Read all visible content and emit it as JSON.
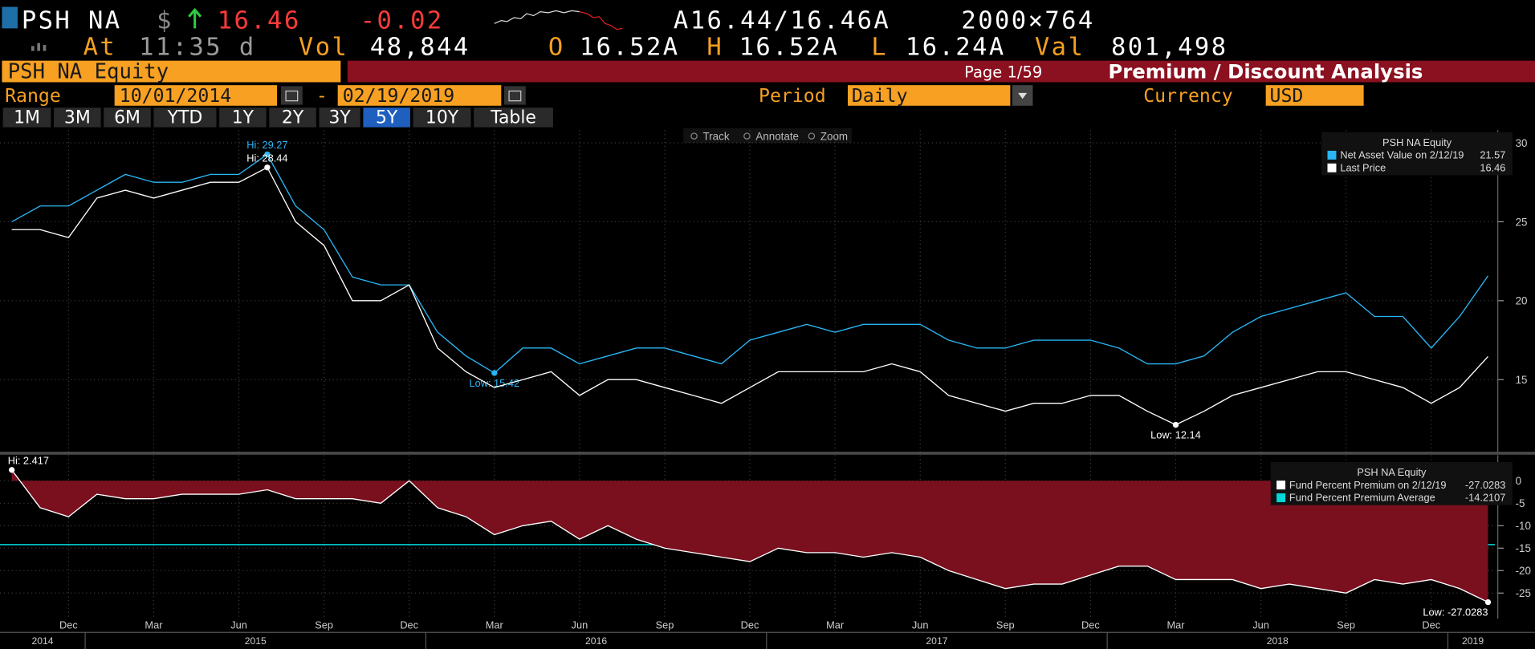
{
  "header": {
    "ticker": "PSH NA",
    "currency": "$",
    "last": "16.46",
    "change": "-0.02",
    "bid_ask": "A16.44/16.46A",
    "size": "2000×764",
    "at_label": "At",
    "time": "11:35 d",
    "vol_label": "Vol",
    "vol": "48,844",
    "open_label": "O",
    "open": "16.52A",
    "high_label": "H",
    "high": "16.52A",
    "low_label": "L",
    "low": "16.24A",
    "val_label": "Val",
    "val": "801,498"
  },
  "title_bar": {
    "security": "PSH NA Equity",
    "page": "Page 1/59",
    "function": "Premium / Discount Analysis"
  },
  "controls": {
    "range_label": "Range",
    "start": "10/01/2014",
    "dash": "-",
    "end": "02/19/2019",
    "period_label": "Period",
    "period": "Daily",
    "currency_label": "Currency",
    "currency": "USD",
    "buttons": [
      "1M",
      "3M",
      "6M",
      "YTD",
      "1Y",
      "2Y",
      "3Y",
      "5Y",
      "10Y",
      "Table"
    ],
    "selected": "5Y"
  },
  "toolbar": [
    "Track",
    "Annotate",
    "Zoom"
  ],
  "chart_data": [
    {
      "type": "line",
      "x": [
        "2014-10",
        "2014-11",
        "2014-12",
        "2015-01",
        "2015-02",
        "2015-03",
        "2015-04",
        "2015-05",
        "2015-06",
        "2015-07",
        "2015-08",
        "2015-09",
        "2015-10",
        "2015-11",
        "2015-12",
        "2016-01",
        "2016-02",
        "2016-03",
        "2016-04",
        "2016-05",
        "2016-06",
        "2016-07",
        "2016-08",
        "2016-09",
        "2016-10",
        "2016-11",
        "2016-12",
        "2017-01",
        "2017-02",
        "2017-03",
        "2017-04",
        "2017-05",
        "2017-06",
        "2017-07",
        "2017-08",
        "2017-09",
        "2017-10",
        "2017-11",
        "2017-12",
        "2018-01",
        "2018-02",
        "2018-03",
        "2018-04",
        "2018-05",
        "2018-06",
        "2018-07",
        "2018-08",
        "2018-09",
        "2018-10",
        "2018-11",
        "2018-12",
        "2019-01",
        "2019-02"
      ],
      "ylim": [
        10.4,
        30.8
      ],
      "yticks": [
        15,
        20,
        25,
        30
      ],
      "grid": true,
      "legend": {
        "title": "PSH NA Equity",
        "position": "upper right"
      },
      "series": [
        {
          "name": "Net Asset Value on 2/12/19",
          "color": "#29b6f6",
          "values": [
            25,
            26,
            26,
            27,
            28,
            27.5,
            27.5,
            28,
            28,
            29.27,
            26,
            24.5,
            21.5,
            21,
            21,
            18,
            16.5,
            15.42,
            17,
            17,
            16,
            16.5,
            17,
            17,
            16.5,
            16,
            17.5,
            18,
            18.5,
            18,
            18.5,
            18.5,
            18.5,
            17.5,
            17,
            17,
            17.5,
            17.5,
            17.5,
            17,
            16,
            16,
            16.5,
            18,
            19,
            19.5,
            20,
            20.5,
            19,
            19,
            17,
            19,
            21.57
          ],
          "annotations": [
            {
              "text": "Hi: 29.27",
              "at": "2015-07"
            },
            {
              "text": "Low: 15.42",
              "at": "2016-03"
            }
          ]
        },
        {
          "name": "Last Price",
          "color": "#ffffff",
          "values": [
            24.5,
            24.5,
            24,
            26.5,
            27,
            26.5,
            27,
            27.5,
            27.5,
            28.44,
            25,
            23.5,
            20,
            20,
            21,
            17,
            15.5,
            14.5,
            15,
            15.5,
            14,
            15,
            15,
            14.5,
            14,
            13.5,
            14.5,
            15.5,
            15.5,
            15.5,
            15.5,
            16,
            15.5,
            14,
            13.5,
            13,
            13.5,
            13.5,
            14,
            14,
            13,
            12.14,
            13,
            14,
            14.5,
            15,
            15.5,
            15.5,
            15,
            14.5,
            13.5,
            14.5,
            16.46
          ],
          "annotations": [
            {
              "text": "Hi: 28.44",
              "at": "2015-07"
            },
            {
              "text": "Low: 12.14",
              "at": "2018-03"
            }
          ]
        }
      ]
    },
    {
      "type": "area",
      "x": [
        "2014-10",
        "2014-11",
        "2014-12",
        "2015-01",
        "2015-02",
        "2015-03",
        "2015-04",
        "2015-05",
        "2015-06",
        "2015-07",
        "2015-08",
        "2015-09",
        "2015-10",
        "2015-11",
        "2015-12",
        "2016-01",
        "2016-02",
        "2016-03",
        "2016-04",
        "2016-05",
        "2016-06",
        "2016-07",
        "2016-08",
        "2016-09",
        "2016-10",
        "2016-11",
        "2016-12",
        "2017-01",
        "2017-02",
        "2017-03",
        "2017-04",
        "2017-05",
        "2017-06",
        "2017-07",
        "2017-08",
        "2017-09",
        "2017-10",
        "2017-11",
        "2017-12",
        "2018-01",
        "2018-02",
        "2018-03",
        "2018-04",
        "2018-05",
        "2018-06",
        "2018-07",
        "2018-08",
        "2018-09",
        "2018-10",
        "2018-11",
        "2018-12",
        "2019-01",
        "2019-02"
      ],
      "ylim": [
        -30.7,
        5.7
      ],
      "yticks": [
        0,
        -5,
        -10,
        -15,
        -20,
        -25
      ],
      "grid": true,
      "legend": {
        "title": "PSH NA Equity",
        "position": "upper right"
      },
      "series": [
        {
          "name": "Fund Percent Premium on 2/12/19",
          "color": "#ffffff",
          "fill": "#7a0f1e",
          "values": [
            2.417,
            -6,
            -8,
            -3,
            -4,
            -4,
            -3,
            -3,
            -3,
            -2,
            -4,
            -4,
            -4,
            -5,
            0,
            -6,
            -8,
            -12,
            -10,
            -9,
            -13,
            -10,
            -13,
            -15,
            -16,
            -17,
            -18,
            -15,
            -16,
            -16,
            -17,
            -16,
            -17,
            -20,
            -22,
            -24,
            -23,
            -23,
            -21,
            -19,
            -19,
            -22,
            -22,
            -22,
            -24,
            -23,
            -24,
            -25,
            -22,
            -23,
            -22,
            -24,
            -27.0283
          ],
          "annotations": [
            {
              "text": "Hi: 2.417",
              "at": "2014-10"
            },
            {
              "text": "Low: -27.0283",
              "at": "2019-02"
            }
          ]
        }
      ],
      "average": {
        "name": "Fund Percent Premium Average",
        "color": "#00d8d8",
        "value": -14.2107
      },
      "xtick_labels": [
        "Dec",
        "Mar",
        "Jun",
        "Sep",
        "Dec",
        "Mar",
        "Jun",
        "Sep",
        "Dec",
        "Mar",
        "Jun",
        "Sep",
        "Dec",
        "Mar",
        "Jun",
        "Sep",
        "Dec"
      ],
      "year_labels": [
        "2014",
        "2015",
        "2016",
        "2017",
        "2018",
        "2019"
      ]
    }
  ]
}
